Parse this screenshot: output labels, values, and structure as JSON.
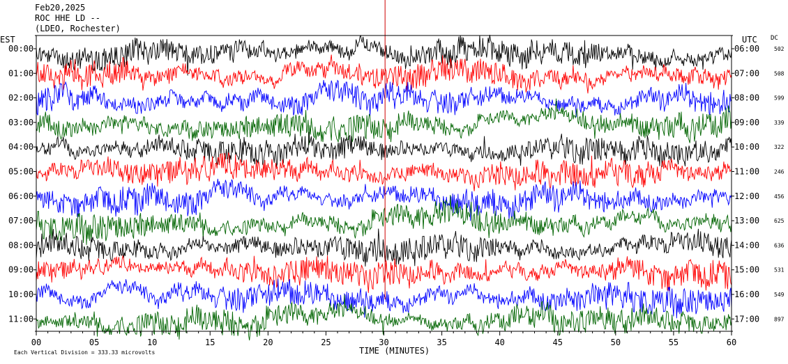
{
  "header": {
    "date": "Feb20,2025",
    "station": "ROC HHE LD --",
    "network": "(LDEO, Rochester)"
  },
  "left_tz_label": "EST",
  "right_tz_label": "UTC",
  "dc_label": "DC",
  "xlabel": "TIME (MINUTES)",
  "footer": "Each Vertical Division = 333.33 microvolts",
  "colors": {
    "black": "#000000",
    "red": "#ff0000",
    "blue": "#0000ff",
    "green": "#006400",
    "spike": "#cc0000"
  },
  "chart_data": {
    "type": "line",
    "x_range": [
      0,
      60
    ],
    "x_ticks": [
      "00",
      "05",
      "10",
      "15",
      "20",
      "25",
      "30",
      "35",
      "40",
      "45",
      "50",
      "55",
      "60"
    ],
    "left_labels": [
      "00:00",
      "01:00",
      "02:00",
      "03:00",
      "04:00",
      "05:00",
      "06:00",
      "07:00",
      "08:00",
      "09:00",
      "10:00",
      "11:00"
    ],
    "right_labels": [
      "06:00",
      "07:00",
      "08:00",
      "09:00",
      "10:00",
      "11:00",
      "12:00",
      "13:00",
      "14:00",
      "15:00",
      "16:00",
      "17:00"
    ],
    "dc_values": [
      "502",
      "508",
      "599",
      "339",
      "322",
      "246",
      "456",
      "625",
      "636",
      "531",
      "549",
      "897"
    ],
    "trace_colors": [
      "black",
      "red",
      "blue",
      "green",
      "black",
      "red",
      "blue",
      "green",
      "black",
      "red",
      "blue",
      "green"
    ]
  }
}
